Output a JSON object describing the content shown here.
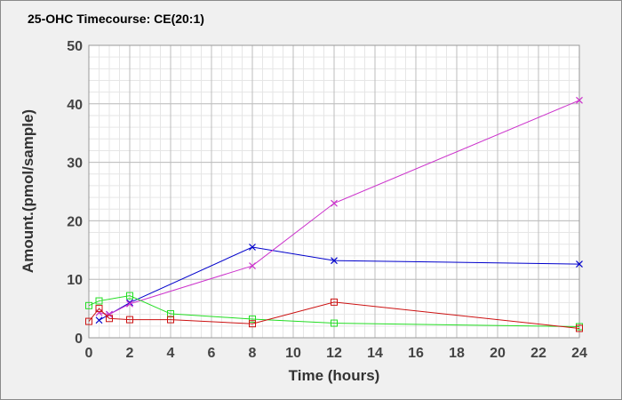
{
  "chart_data": {
    "type": "line",
    "title": "25-OHC Timecourse: CE(20:1)",
    "xlabel": "Time (hours)",
    "ylabel": "Amount.(pmol/sample)",
    "xlim": [
      0,
      24
    ],
    "ylim": [
      0,
      50
    ],
    "x_ticks": [
      0,
      2,
      4,
      6,
      8,
      10,
      12,
      14,
      16,
      18,
      20,
      22,
      24
    ],
    "y_ticks": [
      0,
      10,
      20,
      30,
      40,
      50
    ],
    "grid": true,
    "legend": "none",
    "series": [
      {
        "color": "#0000cc",
        "marker": "x",
        "points": [
          [
            0.5,
            3.0
          ],
          [
            1,
            4.0
          ],
          [
            2,
            6.0
          ],
          [
            8,
            15.5
          ],
          [
            12,
            13.2
          ],
          [
            24,
            12.6
          ]
        ]
      },
      {
        "color": "#cc33cc",
        "marker": "x",
        "points": [
          [
            0.5,
            4.3
          ],
          [
            1,
            4.0
          ],
          [
            2,
            5.8
          ],
          [
            8,
            12.3
          ],
          [
            12,
            23.0
          ],
          [
            24,
            40.6
          ]
        ]
      },
      {
        "color": "#22dd22",
        "marker": "square",
        "points": [
          [
            0,
            5.5
          ],
          [
            0.5,
            6.3
          ],
          [
            2,
            7.2
          ],
          [
            4,
            4.1
          ],
          [
            8,
            3.2
          ],
          [
            12,
            2.5
          ],
          [
            24,
            1.9
          ]
        ]
      },
      {
        "color": "#cc1111",
        "marker": "square",
        "points": [
          [
            0,
            2.8
          ],
          [
            0.5,
            5.0
          ],
          [
            1,
            3.3
          ],
          [
            2,
            3.1
          ],
          [
            4,
            3.1
          ],
          [
            8,
            2.4
          ],
          [
            12,
            6.1
          ],
          [
            24,
            1.6
          ]
        ]
      }
    ]
  }
}
